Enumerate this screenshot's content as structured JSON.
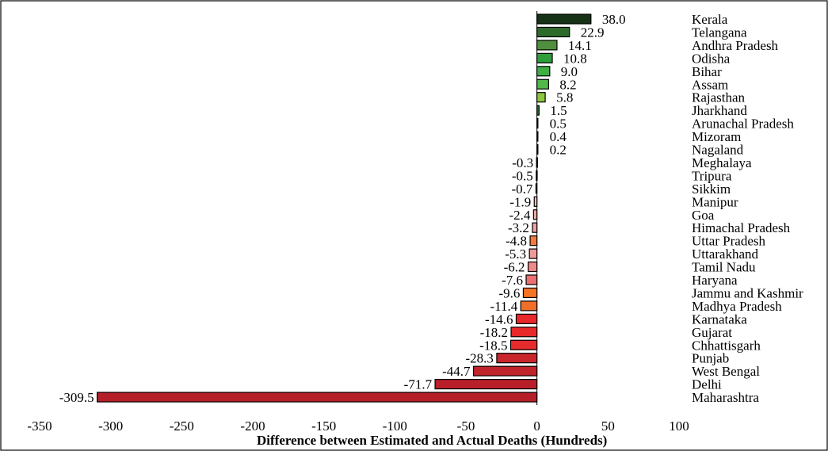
{
  "chart_data": {
    "type": "bar",
    "orientation": "horizontal",
    "xlabel": "Difference between Estimated  and Actual Deaths (Hundreds)",
    "ylabel": "",
    "xlim": [
      -350,
      100
    ],
    "xticks": [
      -350,
      -300,
      -250,
      -200,
      -150,
      -100,
      -50,
      0,
      50,
      100
    ],
    "grid": false,
    "legend": "none",
    "categories": [
      "Kerala",
      "Telangana",
      "Andhra Pradesh",
      "Odisha",
      "Bihar",
      "Assam",
      "Rajasthan",
      "Jharkhand",
      "Arunachal Pradesh",
      "Mizoram",
      "Nagaland",
      "Meghalaya",
      "Tripura",
      "Sikkim",
      "Manipur",
      "Goa",
      "Himachal Pradesh",
      "Uttar Pradesh",
      "Uttarakhand",
      "Tamil Nadu",
      "Haryana",
      "Jammu and Kashmir",
      "Madhya Pradesh",
      "Karnataka",
      "Gujarat",
      "Chhattisgarh",
      "Punjab",
      "West Bengal",
      "Delhi",
      "Maharashtra"
    ],
    "values": [
      38.0,
      22.9,
      14.1,
      10.8,
      9.0,
      8.2,
      5.8,
      1.5,
      0.5,
      0.4,
      0.2,
      -0.3,
      -0.5,
      -0.7,
      -1.9,
      -2.4,
      -3.2,
      -4.8,
      -5.3,
      -6.2,
      -7.6,
      -9.6,
      -11.4,
      -14.6,
      -18.2,
      -18.5,
      -28.3,
      -44.7,
      -71.7,
      -309.5
    ],
    "value_labels": [
      "38.0",
      "22.9",
      "14.1",
      "10.8",
      "9.0",
      "8.2",
      "5.8",
      "1.5",
      "0.5",
      "0.4",
      "0.2",
      "-0.3",
      "-0.5",
      "-0.7",
      "-1.9",
      "-2.4",
      "-3.2",
      "-4.8",
      "-5.3",
      "-6.2",
      "-7.6",
      "-9.6",
      "-11.4",
      "-14.6",
      "-18.2",
      "-18.5",
      "-28.3",
      "-44.7",
      "-71.7",
      "-309.5"
    ],
    "colors": [
      "#163216",
      "#2e6b2a",
      "#4f8f3e",
      "#2e9e3a",
      "#3fae45",
      "#52b848",
      "#8cc63f",
      "#1e7a2a",
      "#d9ead3",
      "#e3efe0",
      "#eef6ec",
      "#fbe3e3",
      "#f8d7d7",
      "#f6d0d0",
      "#f4c0c0",
      "#f2a8a8",
      "#f0a0a0",
      "#f47a3c",
      "#ef9a9a",
      "#ef8a8a",
      "#ec7070",
      "#f47421",
      "#f06e28",
      "#e8282a",
      "#e8282a",
      "#e52b2b",
      "#c8262a",
      "#c0232a",
      "#b81f28",
      "#b51f27"
    ]
  }
}
